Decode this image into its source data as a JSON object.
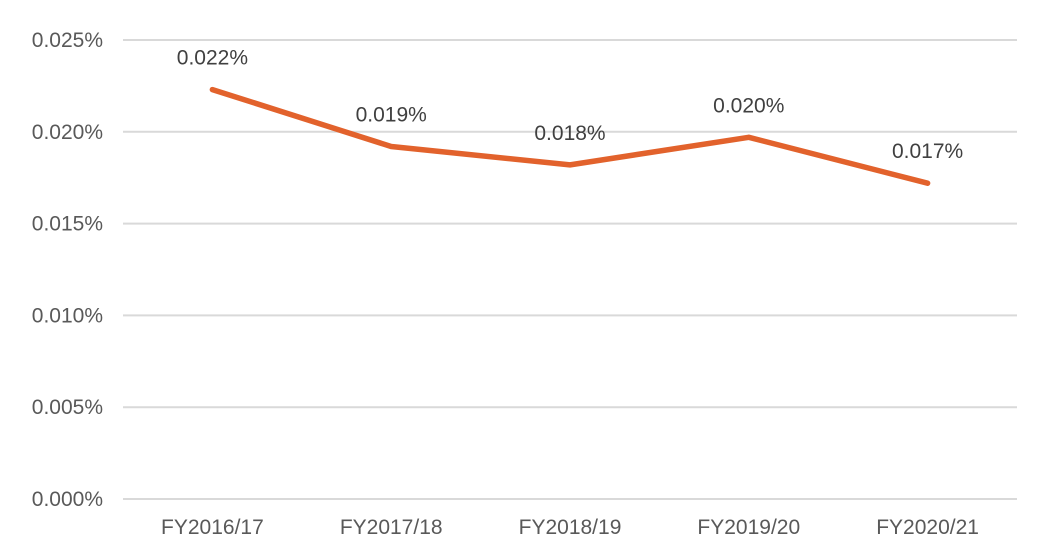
{
  "chart_data": {
    "type": "line",
    "title": "",
    "xlabel": "",
    "ylabel": "",
    "categories": [
      "FY2016/17",
      "FY2017/18",
      "FY2018/19",
      "FY2019/20",
      "FY2020/21"
    ],
    "series": [
      {
        "values": [
          0.0223,
          0.0192,
          0.0182,
          0.0197,
          0.0172
        ],
        "data_labels": [
          "0.022%",
          "0.019%",
          "0.018%",
          "0.020%",
          "0.017%"
        ],
        "color": "#E2622C"
      }
    ],
    "y_ticks": [
      {
        "value": 0.0,
        "label": "0.000%"
      },
      {
        "value": 0.005,
        "label": "0.005%"
      },
      {
        "value": 0.01,
        "label": "0.010%"
      },
      {
        "value": 0.015,
        "label": "0.015%"
      },
      {
        "value": 0.02,
        "label": "0.020%"
      },
      {
        "value": 0.025,
        "label": "0.025%"
      }
    ],
    "ylim": [
      0,
      0.025
    ],
    "grid": true,
    "legend": "none"
  }
}
